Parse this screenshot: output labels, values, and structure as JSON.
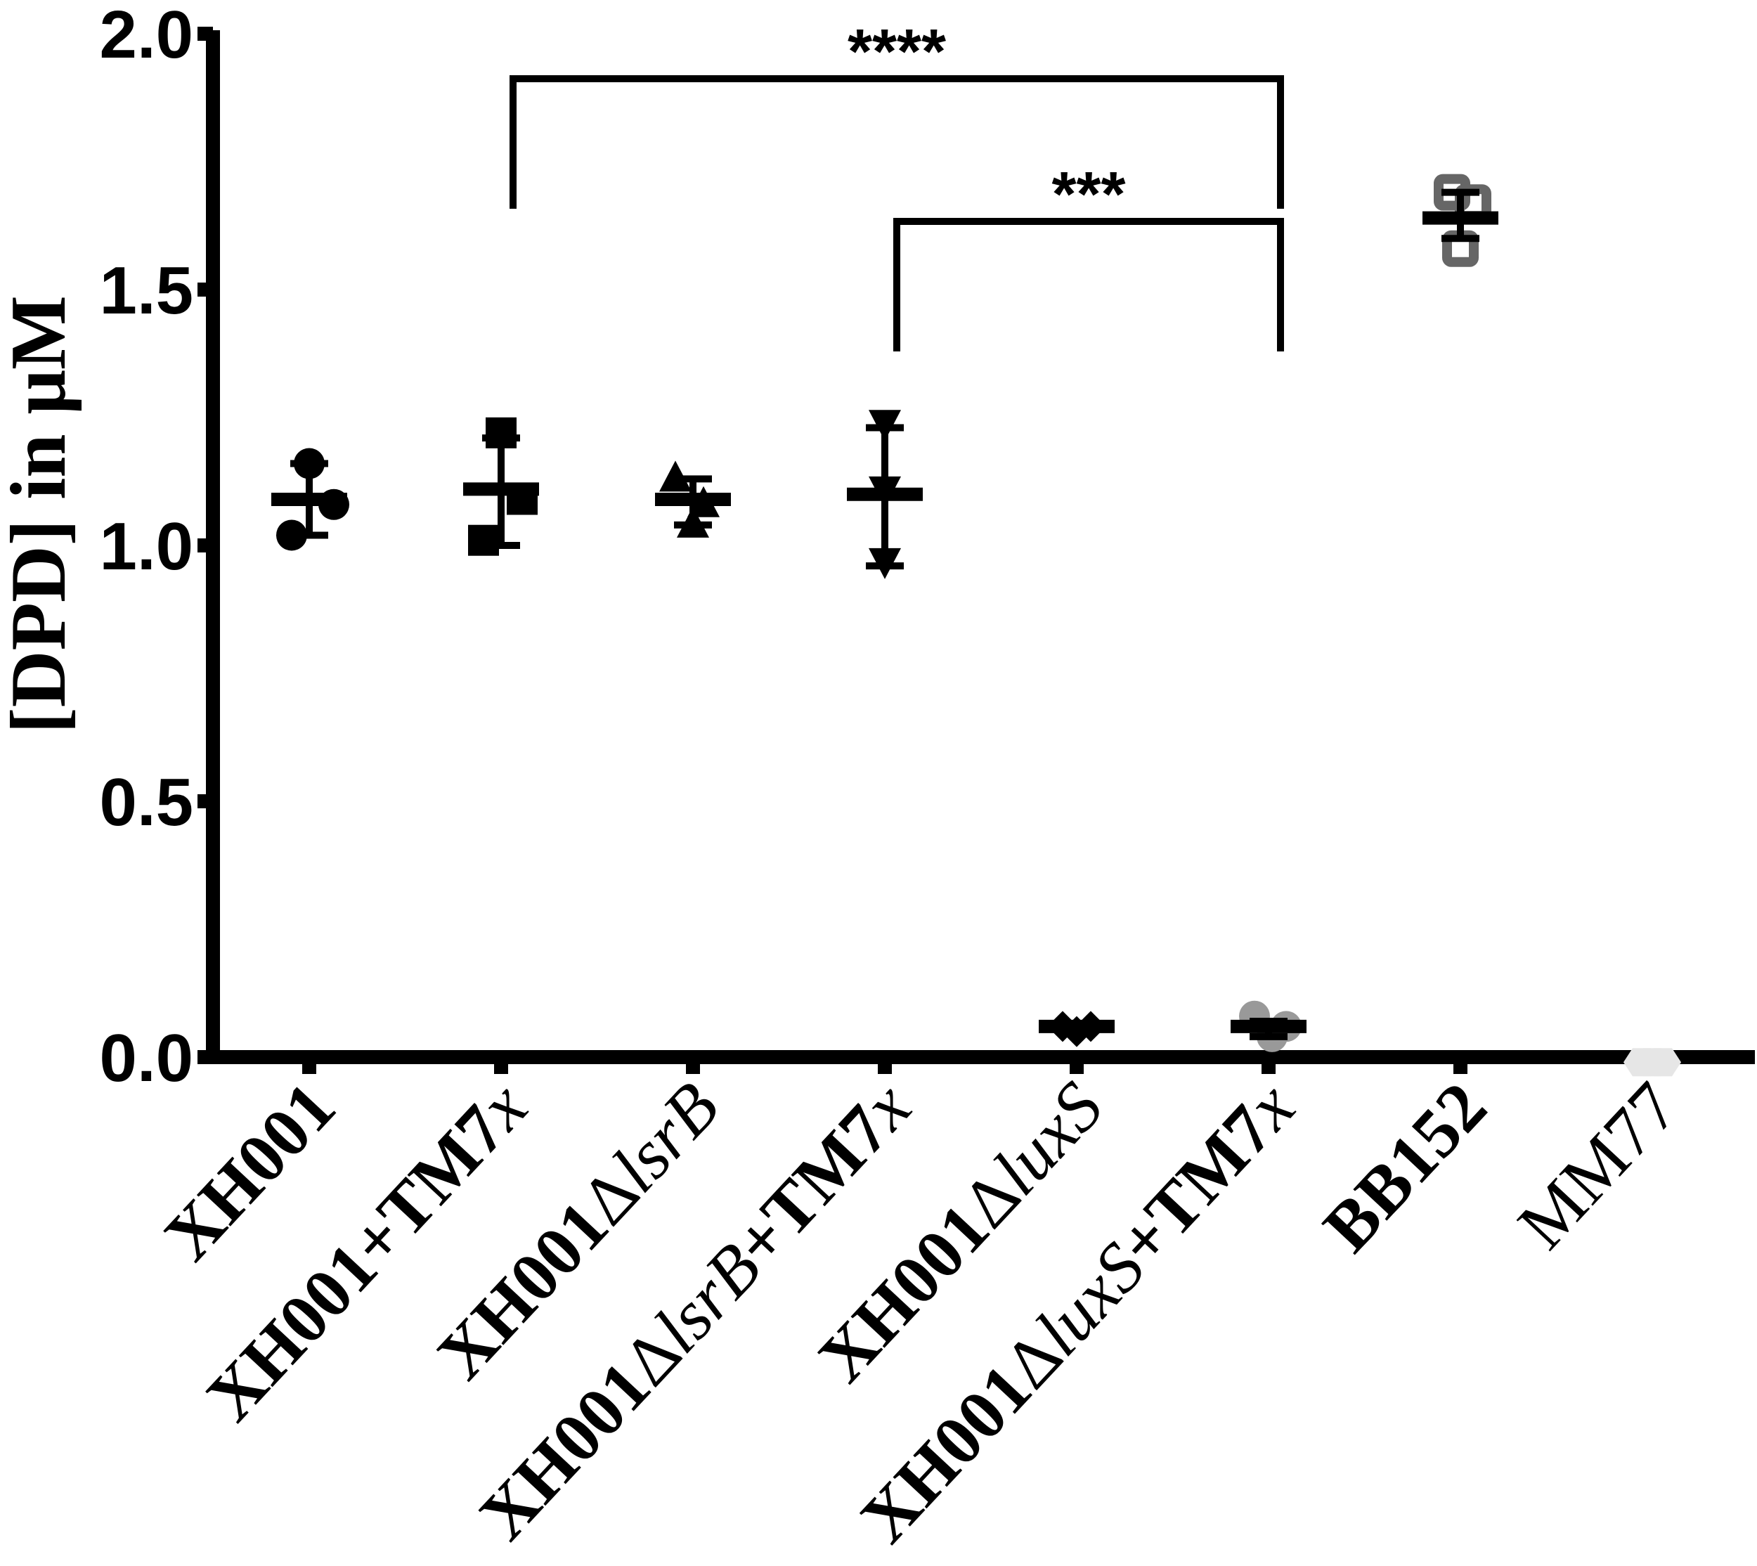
{
  "chart_data": {
    "type": "scatter",
    "subtype": "dot-plot with mean and SD error bars",
    "title": "",
    "xlabel": "",
    "ylabel": "[DPD] in μM",
    "ylim": [
      0,
      2.0
    ],
    "yticks": [
      "0.0",
      "0.5",
      "1.0",
      "1.5",
      "2.0"
    ],
    "ytick_values": [
      0,
      0.5,
      1.0,
      1.5,
      2.0
    ],
    "grid": false,
    "legend": null,
    "categories": [
      {
        "label_parts": [
          {
            "t": "XH001",
            "s": "b"
          }
        ]
      },
      {
        "label_parts": [
          {
            "t": "XH001+TM7",
            "s": "b"
          },
          {
            "t": "x",
            "s": "i"
          }
        ]
      },
      {
        "label_parts": [
          {
            "t": "XH001",
            "s": "b"
          },
          {
            "t": "Δ",
            "s": "r"
          },
          {
            "t": "lsrB",
            "s": "i"
          }
        ]
      },
      {
        "label_parts": [
          {
            "t": "XH001",
            "s": "b"
          },
          {
            "t": "Δ",
            "s": "r"
          },
          {
            "t": "lsrB",
            "s": "i"
          },
          {
            "t": "+TM7",
            "s": "b"
          },
          {
            "t": "x",
            "s": "i"
          }
        ]
      },
      {
        "label_parts": [
          {
            "t": "XH001",
            "s": "b"
          },
          {
            "t": "Δ",
            "s": "r"
          },
          {
            "t": "luxS",
            "s": "i"
          }
        ]
      },
      {
        "label_parts": [
          {
            "t": "XH001",
            "s": "b"
          },
          {
            "t": "Δ",
            "s": "r"
          },
          {
            "t": "luxS",
            "s": "i"
          },
          {
            "t": "+TM7",
            "s": "b"
          },
          {
            "t": "x",
            "s": "i"
          }
        ]
      },
      {
        "label_parts": [
          {
            "t": "BB152",
            "s": "b"
          }
        ]
      },
      {
        "label_parts": [
          {
            "t": "MM77",
            "s": "r"
          }
        ]
      }
    ],
    "category_names": [
      "XH001",
      "XH001+TM7x",
      "XH001ΔlsrB",
      "XH001ΔlsrB+TM7x",
      "XH001ΔluxS",
      "XH001ΔluxS+TM7x",
      "BB152",
      "MM77"
    ],
    "series": [
      {
        "name": "XH001",
        "marker": "circle",
        "color": "#000000",
        "values": [
          1.16,
          1.08,
          1.02
        ],
        "mean": 1.09,
        "sd_low": 1.02,
        "sd_high": 1.16
      },
      {
        "name": "XH001+TM7x",
        "marker": "square",
        "color": "#000000",
        "values": [
          1.22,
          1.09,
          1.01
        ],
        "mean": 1.11,
        "sd_low": 1.0,
        "sd_high": 1.21
      },
      {
        "name": "XH001ΔlsrB",
        "marker": "triangle-up",
        "color": "#000000",
        "values": [
          1.13,
          1.08,
          1.04
        ],
        "mean": 1.09,
        "sd_low": 1.04,
        "sd_high": 1.13
      },
      {
        "name": "XH001ΔlsrB+TM7x",
        "marker": "triangle-down",
        "color": "#000000",
        "values": [
          1.24,
          1.11,
          0.97
        ],
        "mean": 1.1,
        "sd_low": 0.96,
        "sd_high": 1.23
      },
      {
        "name": "XH001ΔluxS",
        "marker": "diamond",
        "color": "#000000",
        "values": [
          0.06,
          0.05,
          0.06
        ],
        "mean": 0.06,
        "sd_low": 0.05,
        "sd_high": 0.06
      },
      {
        "name": "XH001ΔluxS+TM7x",
        "marker": "circle",
        "color": "#999999",
        "values": [
          0.08,
          0.06,
          0.04
        ],
        "mean": 0.06,
        "sd_low": 0.04,
        "sd_high": 0.07
      },
      {
        "name": "BB152",
        "marker": "open-square",
        "color": "#666666",
        "values": [
          1.69,
          1.67,
          1.58
        ],
        "mean": 1.64,
        "sd_low": 1.6,
        "sd_high": 1.69
      },
      {
        "name": "MM77",
        "marker": "hexagon",
        "color": "#e6e6e6",
        "values": [
          -0.01,
          -0.01,
          -0.01
        ],
        "mean": -0.01,
        "sd_low": -0.01,
        "sd_high": -0.01
      }
    ],
    "annotations": [
      {
        "type": "significance-bracket",
        "from": "XH001+TM7x",
        "to": "XH001ΔluxS+TM7x",
        "label": "****",
        "y": 1.93
      },
      {
        "type": "significance-bracket",
        "from": "XH001ΔlsrB+TM7x",
        "to": "XH001ΔluxS+TM7x",
        "label": "***",
        "y": 1.63
      }
    ]
  }
}
